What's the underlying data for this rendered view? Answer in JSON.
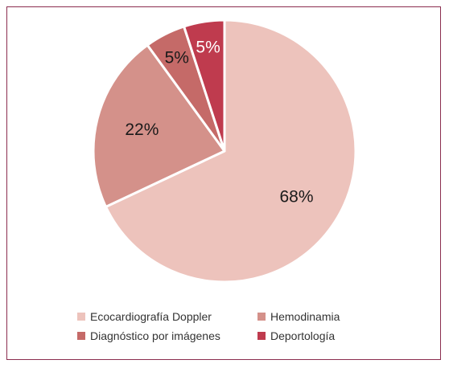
{
  "chart_data": {
    "type": "pie",
    "categories": [
      "Ecocardiografía  Doppler",
      "Hemodinamia",
      "Diagnóstico por imágenes",
      "Deportología"
    ],
    "values": [
      68,
      22,
      5,
      5
    ],
    "labels": [
      "68%",
      "22%",
      "5%",
      "5%"
    ],
    "colors": [
      "#edc3bc",
      "#d4918a",
      "#c56a68",
      "#bf3b4e"
    ],
    "start": "12 o'clock",
    "direction": "clockwise",
    "legend_position": "bottom"
  },
  "frame_color": "#8b2d4f"
}
